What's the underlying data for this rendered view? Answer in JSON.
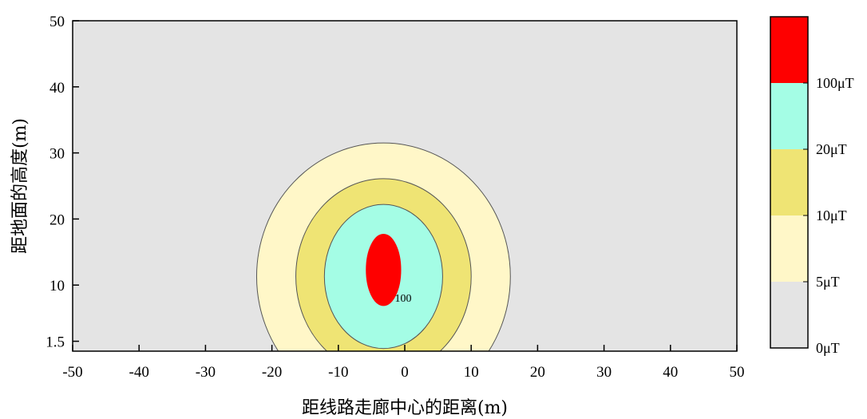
{
  "chart_data": {
    "type": "contour",
    "xlabel": "距线路走廊中心的距离(m)",
    "ylabel": "距地面的高度(m)",
    "xlim": [
      -50,
      50
    ],
    "ylim": [
      0,
      50
    ],
    "x_ticks": [
      -50,
      -40,
      -30,
      -20,
      -10,
      0,
      10,
      20,
      30,
      40,
      50
    ],
    "y_ticks": [
      1.5,
      10,
      20,
      30,
      40,
      50
    ],
    "levels": [
      {
        "label": "0μT",
        "min": 0,
        "color": "#e4e4e4"
      },
      {
        "label": "5μT",
        "min": 5,
        "color": "#fff7c8"
      },
      {
        "label": "10μT",
        "min": 10,
        "color": "#efe474"
      },
      {
        "label": "20μT",
        "min": 20,
        "color": "#a4fde5"
      },
      {
        "label": "100μT",
        "min": 100,
        "color": "#fe0000"
      }
    ],
    "contours": [
      {
        "level": 5,
        "center": [
          -3.2,
          11.3
        ],
        "half_width": 19.1,
        "half_height": 20.2
      },
      {
        "level": 10,
        "center": [
          -3.2,
          11.3
        ],
        "half_width": 13.2,
        "half_height": 14.8
      },
      {
        "level": 20,
        "center": [
          -3.2,
          11.3
        ],
        "half_width": 8.9,
        "half_height": 10.9
      },
      {
        "level": 100,
        "center": [
          -3.2,
          12.3
        ],
        "half_width": 2.6,
        "half_height": 5.4
      }
    ],
    "annotations": [
      {
        "text": "100",
        "x": -1.5,
        "y": 7.5
      }
    ],
    "grid": false,
    "legend": "right colorbar"
  }
}
